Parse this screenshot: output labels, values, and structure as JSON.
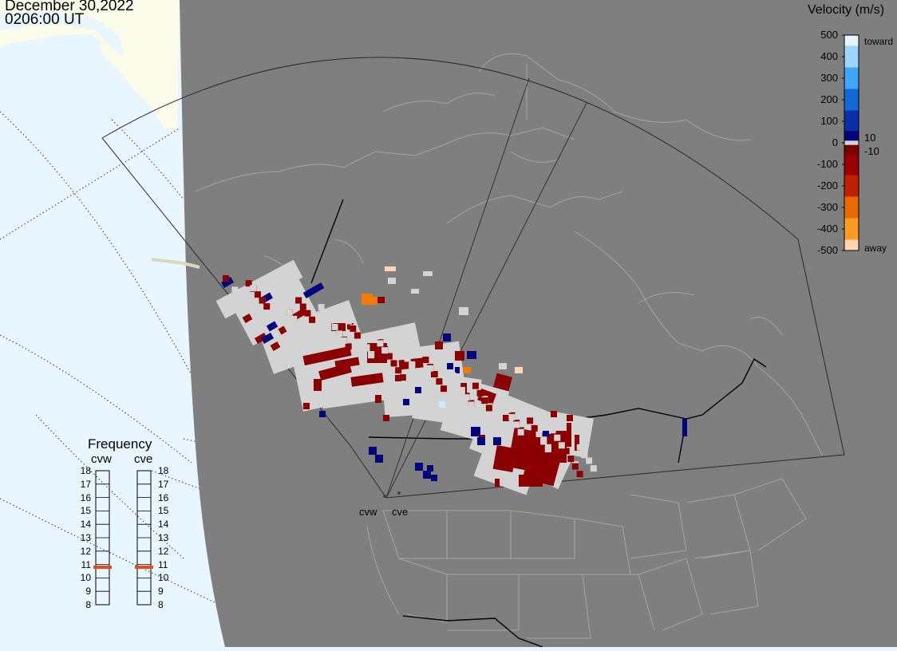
{
  "timestamp": {
    "date": "December 30,2022",
    "time": "0206:00 UT"
  },
  "colors": {
    "ocean": "#e8f6ff",
    "land_outside": "#fbfbea",
    "map_background": "#7f7f7f",
    "ground_scatter": "#d3d3d3",
    "boundary_lines": "#a0a0a0",
    "border_lines": "#000000",
    "frequency_marker": "#e64a19"
  },
  "colorbar": {
    "title": "Velocity (m/s)",
    "ticks": [
      "500",
      "400",
      "300",
      "200",
      "100",
      "0",
      "-100",
      "-200",
      "-300",
      "-400",
      "-500"
    ],
    "inner_ticks": [
      "10",
      "-10"
    ],
    "toward_label": "toward",
    "away_label": "away",
    "stops": [
      {
        "v": 500,
        "color": "#e3f4ff"
      },
      {
        "v": 400,
        "color": "#9ed6ff"
      },
      {
        "v": 300,
        "color": "#3fa5f5"
      },
      {
        "v": 200,
        "color": "#1169d8"
      },
      {
        "v": 100,
        "color": "#0a2fa8"
      },
      {
        "v": 10,
        "color": "#03067a"
      },
      {
        "v": -10,
        "color": "#7a0000"
      },
      {
        "v": -100,
        "color": "#9a0000"
      },
      {
        "v": -200,
        "color": "#c21e00"
      },
      {
        "v": -300,
        "color": "#e96b00"
      },
      {
        "v": -400,
        "color": "#ff9b22"
      },
      {
        "v": -500,
        "color": "#ffd6b0"
      }
    ]
  },
  "frequency_panel": {
    "title": "Frequency",
    "radars": [
      {
        "name": "cvw",
        "selected_mhz": 10.8
      },
      {
        "name": "cve",
        "selected_mhz": 10.8
      }
    ],
    "levels": [
      "18",
      "17",
      "16",
      "15",
      "14",
      "13",
      "12",
      "11",
      "10",
      "9",
      "8"
    ]
  },
  "radar_sites": [
    {
      "code": "cvw"
    },
    {
      "code": "cve"
    }
  ]
}
